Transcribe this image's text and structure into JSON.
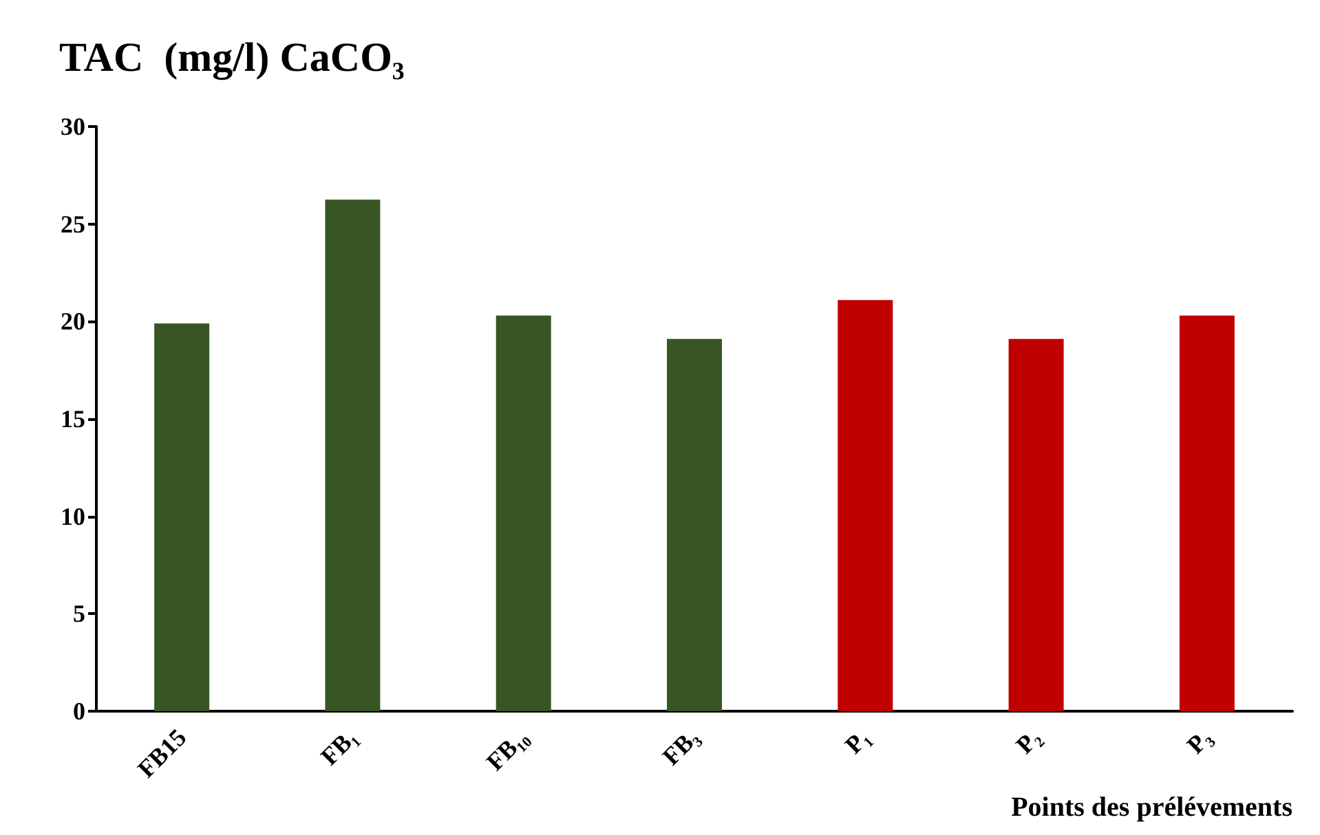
{
  "chart_data": {
    "type": "bar",
    "title": "TAC  (mg/l) CaCO₃",
    "xlabel": "Points des prélévements",
    "categories": [
      "FB15",
      "FB₁",
      "FB₁₀",
      "FB₃",
      "P₁",
      "P₂",
      "P₃"
    ],
    "values": [
      19.9,
      26.25,
      20.3,
      19.1,
      21.1,
      19.1,
      20.3
    ],
    "colors": [
      "#375623",
      "#375623",
      "#375623",
      "#375623",
      "#c00000",
      "#c00000",
      "#c00000"
    ],
    "ylim": [
      0,
      30
    ],
    "yticks": [
      0,
      5,
      10,
      15,
      20,
      25,
      30
    ],
    "grid": false
  }
}
